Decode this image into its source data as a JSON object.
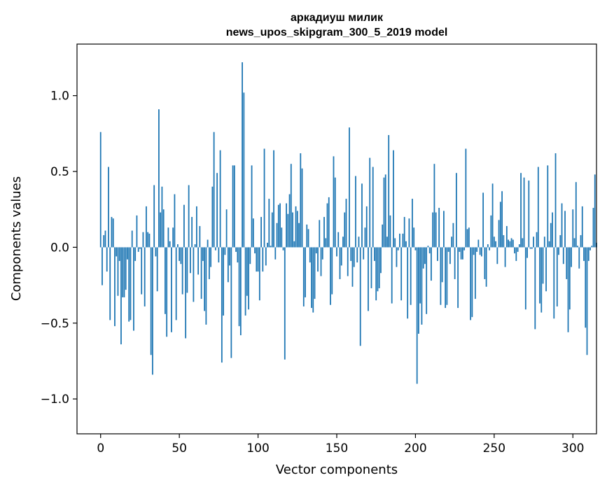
{
  "chart_data": {
    "type": "bar",
    "title": "аркадиуш милик",
    "subtitle": "news_upos_skipgram_300_5_2019 model",
    "xlabel": "Vector components",
    "ylabel": "Components values",
    "xlim": [
      -15,
      315
    ],
    "ylim": [
      -1.23,
      1.34
    ],
    "xticks": [
      0,
      50,
      100,
      150,
      200,
      250,
      300
    ],
    "xtick_labels": [
      "0",
      "50",
      "100",
      "150",
      "200",
      "250",
      "300"
    ],
    "yticks": [
      -1.0,
      -0.5,
      0.0,
      0.5,
      1.0
    ],
    "ytick_labels": [
      "−1.0",
      "−0.5",
      "0.0",
      "0.5",
      "1.0"
    ],
    "grid": false,
    "color": "#1f77b4",
    "x_start": 0,
    "values": [
      0.76,
      -0.25,
      0.08,
      0.11,
      -0.16,
      0.53,
      -0.48,
      0.2,
      0.19,
      -0.52,
      -0.06,
      -0.32,
      -0.09,
      -0.64,
      -0.33,
      -0.33,
      -0.28,
      -0.08,
      -0.49,
      -0.48,
      0.11,
      -0.55,
      -0.09,
      0.21,
      -0.03,
      -0.01,
      -0.31,
      0.1,
      -0.39,
      0.27,
      0.1,
      0.09,
      -0.71,
      -0.84,
      0.41,
      -0.06,
      -0.29,
      0.91,
      0.23,
      0.4,
      0.25,
      -0.44,
      -0.59,
      0.13,
      0.04,
      -0.56,
      0.13,
      0.35,
      -0.48,
      0.02,
      -0.09,
      -0.11,
      -0.31,
      0.28,
      -0.6,
      -0.3,
      0.41,
      -0.17,
      0.2,
      -0.36,
      0.02,
      0.27,
      -0.18,
      0.14,
      -0.34,
      -0.09,
      -0.42,
      -0.51,
      0.05,
      -0.21,
      -0.13,
      0.4,
      0.76,
      -0.02,
      0.49,
      -0.1,
      0.64,
      -0.76,
      -0.45,
      -0.05,
      0.25,
      -0.23,
      -0.12,
      -0.73,
      0.54,
      0.54,
      -0.03,
      -0.1,
      -0.52,
      -0.58,
      1.22,
      1.02,
      -0.45,
      -0.32,
      -0.41,
      -0.11,
      0.54,
      0.19,
      -0.04,
      -0.16,
      -0.16,
      -0.35,
      0.2,
      -0.16,
      0.65,
      -0.12,
      0.03,
      0.32,
      0.01,
      0.23,
      0.64,
      -0.08,
      0.16,
      0.28,
      0.29,
      0.13,
      -0.02,
      -0.74,
      0.29,
      0.22,
      0.35,
      0.55,
      0.23,
      0.04,
      0.27,
      0.24,
      0.16,
      0.62,
      0.52,
      -0.39,
      -0.33,
      0.15,
      0.12,
      -0.1,
      -0.4,
      -0.43,
      -0.34,
      -0.04,
      -0.16,
      0.18,
      -0.19,
      -0.08,
      0.2,
      0.06,
      0.29,
      0.33,
      -0.38,
      -0.31,
      0.6,
      0.46,
      -0.06,
      0.1,
      -0.21,
      -0.12,
      0.07,
      0.23,
      0.32,
      -0.19,
      0.79,
      -0.09,
      -0.26,
      -0.13,
      0.47,
      -0.1,
      0.07,
      -0.65,
      0.42,
      -0.08,
      0.13,
      0.27,
      -0.42,
      0.59,
      -0.27,
      0.53,
      -0.09,
      -0.35,
      -0.29,
      -0.27,
      -0.17,
      0.15,
      0.46,
      0.48,
      0.07,
      0.74,
      0.21,
      -0.37,
      0.64,
      0.06,
      -0.13,
      -0.02,
      0.09,
      -0.35,
      0.09,
      0.2,
      0.04,
      -0.47,
      0.19,
      -0.38,
      0.32,
      0.13,
      -0.02,
      -0.9,
      -0.57,
      -0.37,
      -0.51,
      -0.14,
      -0.11,
      -0.44,
      0.01,
      -0.04,
      -0.22,
      0.23,
      0.55,
      0.23,
      -0.09,
      0.26,
      -0.38,
      -0.23,
      0.24,
      -0.4,
      -0.38,
      -0.03,
      -0.11,
      0.07,
      0.16,
      -0.21,
      0.49,
      -0.4,
      -0.03,
      -0.08,
      -0.08,
      -0.02,
      0.65,
      0.12,
      0.13,
      -0.48,
      -0.46,
      -0.05,
      -0.34,
      -0.03,
      0.05,
      -0.05,
      -0.06,
      0.36,
      -0.21,
      -0.26,
      0.02,
      -0.02,
      0.21,
      0.42,
      0.07,
      0.04,
      -0.11,
      0.18,
      0.3,
      0.37,
      0.08,
      -0.13,
      0.14,
      0.05,
      0.04,
      0.06,
      0.05,
      -0.04,
      -0.09,
      -0.03,
      0.02,
      0.49,
      0.06,
      0.46,
      -0.41,
      -0.07,
      0.44,
      -0.01,
      -0.01,
      0.07,
      -0.54,
      0.1,
      0.53,
      -0.37,
      -0.43,
      -0.24,
      0.07,
      -0.29,
      0.54,
      0.04,
      0.16,
      0.23,
      -0.47,
      0.62,
      -0.39,
      -0.05,
      0.08,
      0.29,
      -0.11,
      0.24,
      -0.21,
      -0.56,
      -0.41,
      -0.13,
      0.25,
      0.06,
      0.43,
      0.01,
      -0.14,
      0.08,
      0.27,
      -0.09,
      -0.53,
      -0.71,
      -0.09,
      -0.02,
      0.01,
      0.26,
      0.48,
      0.03
    ]
  }
}
